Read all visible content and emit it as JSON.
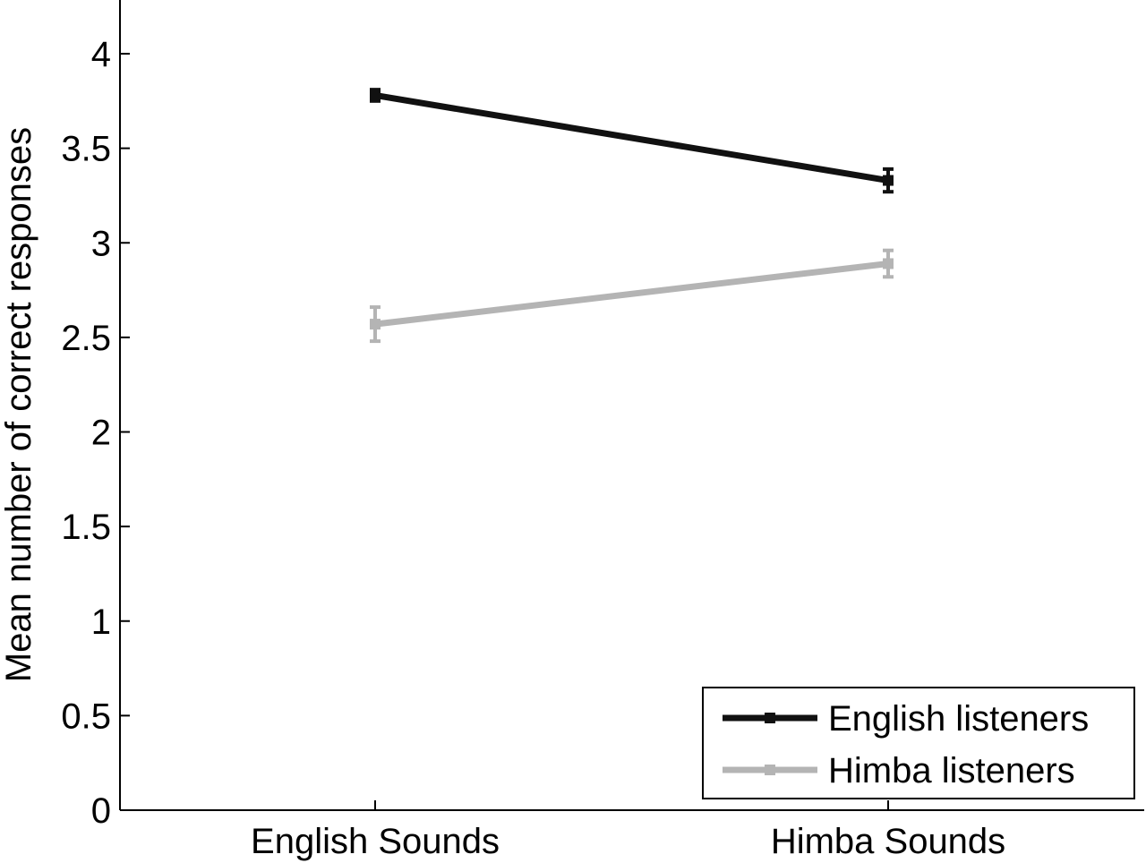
{
  "chart_data": {
    "type": "line",
    "title": "",
    "xlabel": "",
    "ylabel": "Mean number of correct responses",
    "categories": [
      "English Sounds",
      "Himba Sounds"
    ],
    "ylim": [
      0,
      4.2
    ],
    "yticks": [
      0,
      0.5,
      1,
      1.5,
      2,
      2.5,
      3,
      3.5,
      4
    ],
    "ytick_labels": [
      "0",
      "0.5",
      "1",
      "1.5",
      "2",
      "2.5",
      "3",
      "3.5",
      "4"
    ],
    "grid": false,
    "legend_position": "bottom-right",
    "series": [
      {
        "name": "English listeners",
        "color": "#111111",
        "values": [
          3.78,
          3.33
        ],
        "errors": [
          0.03,
          0.06
        ]
      },
      {
        "name": "Himba listeners",
        "color": "#b4b4b4",
        "values": [
          2.57,
          2.89
        ],
        "errors": [
          0.09,
          0.07
        ]
      }
    ]
  }
}
